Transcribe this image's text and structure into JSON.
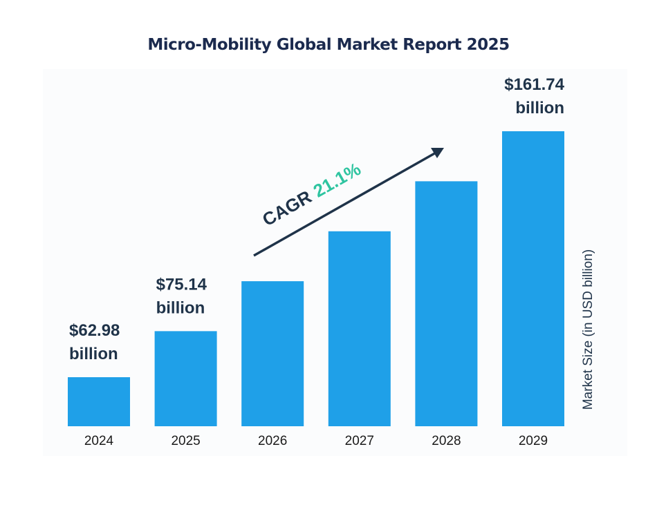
{
  "chart_data": {
    "type": "bar",
    "title": "Micro-Mobility Global Market Report 2025",
    "categories": [
      "2024",
      "2025",
      "2026",
      "2027",
      "2028",
      "2029"
    ],
    "values": [
      62.98,
      75.14,
      91.0,
      110.2,
      133.5,
      161.74
    ],
    "data_labels": [
      [
        "$62.98",
        "billion"
      ],
      [
        "$75.14",
        "billion"
      ],
      null,
      null,
      null,
      [
        "$161.74",
        "billion"
      ]
    ],
    "xlabel": "",
    "ylabel": "Market Size (in USD billion)",
    "annotation": {
      "prefix": "CAGR",
      "value": "21.1%"
    },
    "grid": false,
    "colors": {
      "bar": "#1fa0e8",
      "title": "#1b2a4e",
      "label": "#1f3349",
      "cagr_value": "#2ec4a0",
      "arrow": "#1f3349"
    }
  }
}
